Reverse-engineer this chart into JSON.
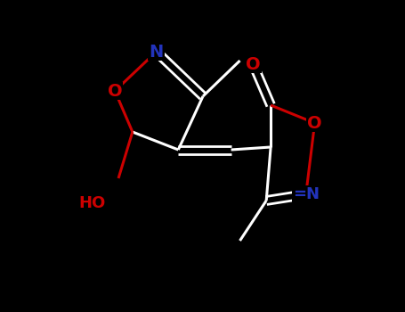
{
  "bg_color": "#000000",
  "bond_color": "#ffffff",
  "N_color": "#2233bb",
  "O_color": "#cc0000",
  "lw": 2.2,
  "dlw": 2.0,
  "figsize": [
    4.55,
    3.5
  ],
  "dpi": 100,
  "xlim": [
    0,
    9
  ],
  "ylim": [
    0,
    7
  ]
}
